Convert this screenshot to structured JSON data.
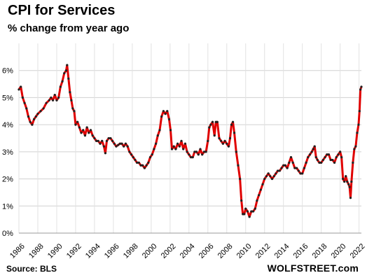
{
  "chart_data": {
    "type": "line",
    "title": "CPI for Services",
    "subtitle": "% change from year ago",
    "xlabel": "",
    "ylabel": "",
    "x_range": [
      1986,
      2022.25
    ],
    "ylim": [
      0,
      7
    ],
    "grid": true,
    "legend": "none",
    "y_ticks": [
      {
        "value": 0,
        "label": "0%"
      },
      {
        "value": 1,
        "label": "1%"
      },
      {
        "value": 2,
        "label": "2%"
      },
      {
        "value": 3,
        "label": "3%"
      },
      {
        "value": 4,
        "label": "4%"
      },
      {
        "value": 5,
        "label": "5%"
      },
      {
        "value": 6,
        "label": "6%"
      }
    ],
    "x_ticks": [
      {
        "value": 1986,
        "label": "1986"
      },
      {
        "value": 1988,
        "label": "1988"
      },
      {
        "value": 1990,
        "label": "1990"
      },
      {
        "value": 1992,
        "label": "1992"
      },
      {
        "value": 1994,
        "label": "1994"
      },
      {
        "value": 1996,
        "label": "1996"
      },
      {
        "value": 1998,
        "label": "1998"
      },
      {
        "value": 2000,
        "label": "2000"
      },
      {
        "value": 2002,
        "label": "2002"
      },
      {
        "value": 2004,
        "label": "2004"
      },
      {
        "value": 2006,
        "label": "2006"
      },
      {
        "value": 2008,
        "label": "2008"
      },
      {
        "value": 2010,
        "label": "2010"
      },
      {
        "value": 2012,
        "label": "2012"
      },
      {
        "value": 2014,
        "label": "2014"
      },
      {
        "value": 2016,
        "label": "2016"
      },
      {
        "value": 2018,
        "label": "2018"
      },
      {
        "value": 2020,
        "label": "2020"
      },
      {
        "value": 2022,
        "label": "2022"
      }
    ],
    "series": [
      {
        "color": "#e00000",
        "marker_color": "#222222",
        "points": [
          [
            1986.0,
            5.3
          ],
          [
            1986.2,
            5.4
          ],
          [
            1986.4,
            5.0
          ],
          [
            1986.6,
            4.8
          ],
          [
            1986.8,
            4.6
          ],
          [
            1987.0,
            4.3
          ],
          [
            1987.2,
            4.1
          ],
          [
            1987.4,
            4.0
          ],
          [
            1987.6,
            4.2
          ],
          [
            1987.8,
            4.3
          ],
          [
            1988.0,
            4.4
          ],
          [
            1988.3,
            4.5
          ],
          [
            1988.6,
            4.6
          ],
          [
            1988.9,
            4.8
          ],
          [
            1989.2,
            4.9
          ],
          [
            1989.4,
            5.0
          ],
          [
            1989.6,
            4.9
          ],
          [
            1989.8,
            5.1
          ],
          [
            1990.0,
            4.9
          ],
          [
            1990.2,
            5.0
          ],
          [
            1990.4,
            5.4
          ],
          [
            1990.6,
            5.6
          ],
          [
            1990.8,
            5.9
          ],
          [
            1991.0,
            6.0
          ],
          [
            1991.1,
            6.2
          ],
          [
            1991.25,
            5.7
          ],
          [
            1991.4,
            5.2
          ],
          [
            1991.55,
            4.9
          ],
          [
            1991.7,
            4.6
          ],
          [
            1991.85,
            4.5
          ],
          [
            1992.0,
            4.0
          ],
          [
            1992.2,
            4.1
          ],
          [
            1992.4,
            3.9
          ],
          [
            1992.6,
            3.7
          ],
          [
            1992.8,
            3.8
          ],
          [
            1993.0,
            3.6
          ],
          [
            1993.2,
            3.9
          ],
          [
            1993.4,
            3.7
          ],
          [
            1993.6,
            3.8
          ],
          [
            1993.8,
            3.6
          ],
          [
            1994.0,
            3.5
          ],
          [
            1994.2,
            3.4
          ],
          [
            1994.4,
            3.4
          ],
          [
            1994.6,
            3.3
          ],
          [
            1994.8,
            3.4
          ],
          [
            1995.0,
            3.2
          ],
          [
            1995.15,
            2.95
          ],
          [
            1995.3,
            3.4
          ],
          [
            1995.5,
            3.5
          ],
          [
            1995.7,
            3.5
          ],
          [
            1995.9,
            3.4
          ],
          [
            1996.1,
            3.3
          ],
          [
            1996.3,
            3.2
          ],
          [
            1996.5,
            3.25
          ],
          [
            1996.7,
            3.3
          ],
          [
            1996.9,
            3.3
          ],
          [
            1997.1,
            3.2
          ],
          [
            1997.3,
            3.3
          ],
          [
            1997.5,
            3.2
          ],
          [
            1997.7,
            3.0
          ],
          [
            1997.9,
            2.9
          ],
          [
            1998.1,
            2.8
          ],
          [
            1998.3,
            2.7
          ],
          [
            1998.5,
            2.6
          ],
          [
            1998.7,
            2.6
          ],
          [
            1998.9,
            2.5
          ],
          [
            1999.1,
            2.5
          ],
          [
            1999.3,
            2.4
          ],
          [
            1999.5,
            2.5
          ],
          [
            1999.7,
            2.6
          ],
          [
            1999.9,
            2.8
          ],
          [
            2000.1,
            2.9
          ],
          [
            2000.3,
            3.1
          ],
          [
            2000.5,
            3.3
          ],
          [
            2000.7,
            3.6
          ],
          [
            2000.9,
            3.8
          ],
          [
            2001.1,
            4.3
          ],
          [
            2001.3,
            4.5
          ],
          [
            2001.5,
            4.4
          ],
          [
            2001.7,
            4.5
          ],
          [
            2001.9,
            4.2
          ],
          [
            2002.05,
            3.8
          ],
          [
            2002.2,
            3.1
          ],
          [
            2002.4,
            3.2
          ],
          [
            2002.6,
            3.1
          ],
          [
            2002.8,
            3.3
          ],
          [
            2003.0,
            3.2
          ],
          [
            2003.2,
            3.4
          ],
          [
            2003.4,
            3.1
          ],
          [
            2003.6,
            3.3
          ],
          [
            2003.8,
            3.0
          ],
          [
            2004.0,
            2.9
          ],
          [
            2004.2,
            2.8
          ],
          [
            2004.4,
            2.8
          ],
          [
            2004.6,
            3.0
          ],
          [
            2004.8,
            3.0
          ],
          [
            2005.0,
            2.9
          ],
          [
            2005.2,
            3.1
          ],
          [
            2005.4,
            2.9
          ],
          [
            2005.6,
            3.0
          ],
          [
            2005.8,
            3.0
          ],
          [
            2006.0,
            3.4
          ],
          [
            2006.15,
            3.9
          ],
          [
            2006.3,
            4.0
          ],
          [
            2006.5,
            4.1
          ],
          [
            2006.7,
            3.6
          ],
          [
            2006.85,
            4.1
          ],
          [
            2007.0,
            4.1
          ],
          [
            2007.2,
            3.5
          ],
          [
            2007.4,
            3.4
          ],
          [
            2007.6,
            3.3
          ],
          [
            2007.8,
            3.4
          ],
          [
            2008.0,
            3.3
          ],
          [
            2008.2,
            3.2
          ],
          [
            2008.35,
            3.5
          ],
          [
            2008.5,
            4.0
          ],
          [
            2008.65,
            4.1
          ],
          [
            2008.8,
            3.7
          ],
          [
            2009.0,
            3.0
          ],
          [
            2009.2,
            2.5
          ],
          [
            2009.4,
            2.0
          ],
          [
            2009.55,
            1.2
          ],
          [
            2009.7,
            0.7
          ],
          [
            2009.85,
            0.7
          ],
          [
            2010.0,
            0.9
          ],
          [
            2010.2,
            0.8
          ],
          [
            2010.4,
            0.6
          ],
          [
            2010.6,
            0.8
          ],
          [
            2010.8,
            0.8
          ],
          [
            2011.0,
            0.9
          ],
          [
            2011.2,
            1.2
          ],
          [
            2011.4,
            1.4
          ],
          [
            2011.6,
            1.6
          ],
          [
            2011.8,
            1.8
          ],
          [
            2012.0,
            2.0
          ],
          [
            2012.2,
            2.1
          ],
          [
            2012.4,
            2.2
          ],
          [
            2012.6,
            2.1
          ],
          [
            2012.8,
            2.0
          ],
          [
            2013.0,
            2.1
          ],
          [
            2013.2,
            2.2
          ],
          [
            2013.4,
            2.3
          ],
          [
            2013.6,
            2.3
          ],
          [
            2013.8,
            2.4
          ],
          [
            2014.0,
            2.5
          ],
          [
            2014.2,
            2.5
          ],
          [
            2014.4,
            2.4
          ],
          [
            2014.6,
            2.6
          ],
          [
            2014.8,
            2.8
          ],
          [
            2015.0,
            2.6
          ],
          [
            2015.2,
            2.4
          ],
          [
            2015.4,
            2.4
          ],
          [
            2015.6,
            2.3
          ],
          [
            2015.8,
            2.2
          ],
          [
            2016.0,
            2.2
          ],
          [
            2016.2,
            2.4
          ],
          [
            2016.4,
            2.6
          ],
          [
            2016.6,
            2.8
          ],
          [
            2016.8,
            2.9
          ],
          [
            2017.0,
            3.0
          ],
          [
            2017.15,
            3.1
          ],
          [
            2017.3,
            3.2
          ],
          [
            2017.45,
            2.8
          ],
          [
            2017.6,
            2.7
          ],
          [
            2017.8,
            2.6
          ],
          [
            2018.0,
            2.6
          ],
          [
            2018.2,
            2.7
          ],
          [
            2018.4,
            2.8
          ],
          [
            2018.6,
            2.9
          ],
          [
            2018.8,
            2.9
          ],
          [
            2019.0,
            2.7
          ],
          [
            2019.2,
            2.7
          ],
          [
            2019.4,
            2.6
          ],
          [
            2019.6,
            2.8
          ],
          [
            2019.8,
            2.9
          ],
          [
            2020.0,
            3.0
          ],
          [
            2020.15,
            2.8
          ],
          [
            2020.3,
            2.0
          ],
          [
            2020.45,
            1.9
          ],
          [
            2020.6,
            2.1
          ],
          [
            2020.75,
            1.9
          ],
          [
            2020.9,
            1.8
          ],
          [
            2021.0,
            1.7
          ],
          [
            2021.1,
            1.3
          ],
          [
            2021.2,
            1.9
          ],
          [
            2021.35,
            2.6
          ],
          [
            2021.5,
            3.1
          ],
          [
            2021.65,
            3.2
          ],
          [
            2021.8,
            3.7
          ],
          [
            2021.95,
            4.0
          ],
          [
            2022.05,
            4.5
          ],
          [
            2022.15,
            5.3
          ],
          [
            2022.25,
            5.4
          ]
        ]
      }
    ]
  },
  "header": {
    "title": "CPI for Services",
    "subtitle": "% change from year ago"
  },
  "footer": {
    "source": "Source: BLS",
    "brand": "WOLFSTREET.com"
  }
}
